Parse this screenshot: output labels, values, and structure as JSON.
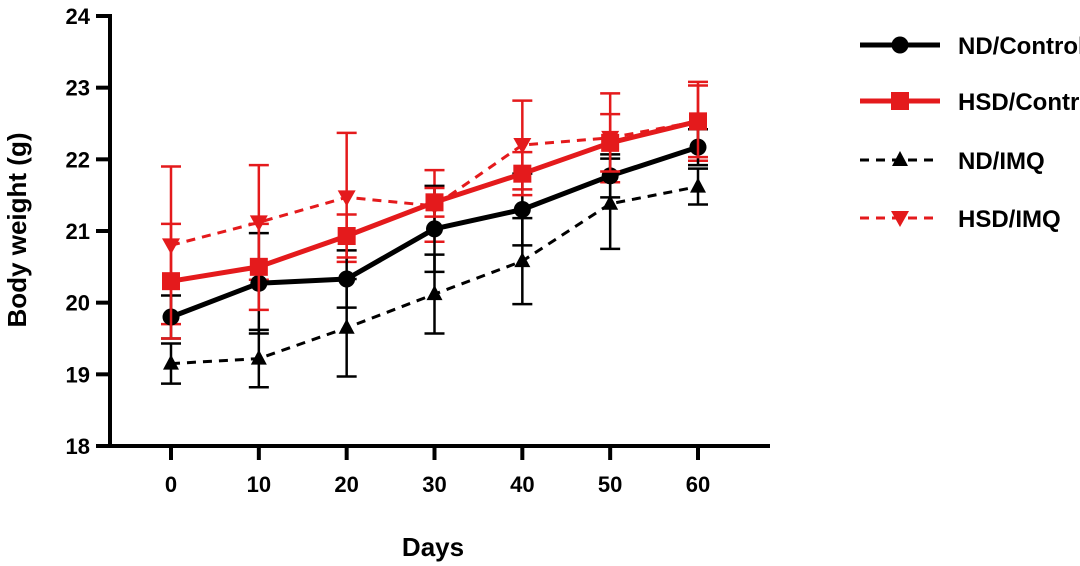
{
  "chart_data": {
    "type": "line",
    "xlabel": "Days",
    "ylabel": "Body weight (g)",
    "xticks": [
      "0",
      "10",
      "20",
      "30",
      "40",
      "50",
      "60"
    ],
    "yticks": [
      "18",
      "19",
      "20",
      "21",
      "22",
      "23",
      "24"
    ],
    "xlim": [
      0,
      60
    ],
    "ylim": [
      18,
      24
    ],
    "x": [
      0,
      10,
      20,
      30,
      40,
      50,
      60
    ],
    "legend_position": "right",
    "series": [
      {
        "name": "ND/Control",
        "color": "#000000",
        "dashed": false,
        "marker": "circle",
        "values": [
          19.8,
          20.27,
          20.33,
          21.03,
          21.3,
          21.77,
          22.17
        ],
        "errors": [
          0.3,
          0.7,
          0.4,
          0.6,
          0.5,
          0.3,
          0.25
        ]
      },
      {
        "name": "HSD/Control",
        "color": "#e41a1c",
        "dashed": false,
        "marker": "square",
        "values": [
          20.3,
          20.5,
          20.93,
          21.4,
          21.8,
          22.23,
          22.53
        ],
        "errors": [
          0.8,
          0.6,
          0.3,
          0.2,
          0.3,
          0.4,
          0.5
        ]
      },
      {
        "name": "ND/IMQ",
        "color": "#000000",
        "dashed": true,
        "marker": "triangle-up",
        "values": [
          19.15,
          19.22,
          19.65,
          20.12,
          20.58,
          21.38,
          21.62
        ],
        "errors": [
          0.28,
          0.4,
          0.68,
          0.55,
          0.6,
          0.63,
          0.25
        ]
      },
      {
        "name": "HSD/IMQ",
        "color": "#e41a1c",
        "dashed": true,
        "marker": "triangle-down",
        "values": [
          20.8,
          21.12,
          21.47,
          21.35,
          22.2,
          22.3,
          22.53
        ],
        "errors": [
          1.1,
          0.8,
          0.9,
          0.5,
          0.62,
          0.62,
          0.55
        ]
      }
    ]
  }
}
